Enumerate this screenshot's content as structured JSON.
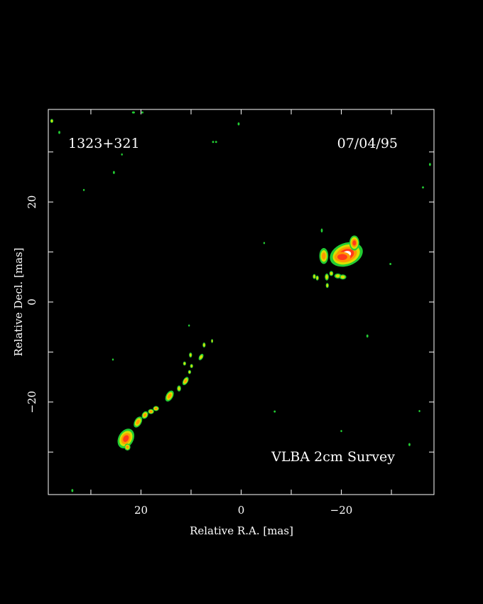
{
  "chart_data": {
    "type": "heatmap",
    "source_name": "1323+321",
    "epoch": "07/04/95",
    "survey_label": "VLBA 2cm Survey",
    "xlabel": "Relative R.A. [mas]",
    "ylabel": "Relative Decl. [mas]",
    "xlim": [
      38.5,
      -38.5
    ],
    "ylim": [
      -38.5,
      38.5
    ],
    "x_reversed": true,
    "x_ticks": [
      20,
      0,
      -20
    ],
    "x_tick_labels": [
      "20",
      "0",
      "−20"
    ],
    "y_ticks": [
      20,
      0,
      -20
    ],
    "y_tick_labels": [
      "20",
      "0",
      "−20"
    ],
    "minor_tick_step": 10,
    "grid": false,
    "background": "#000000",
    "colors": {
      "axes": "#ffffff",
      "faint": "#22cc33",
      "low": "#d8e000",
      "mid": "#ff9900",
      "high": "#ff3a1a",
      "peak": "#ffffff"
    },
    "components": [
      {
        "x": -21.0,
        "y": 9.5,
        "w": 3.4,
        "h": 2.3,
        "angle": -20,
        "level": "peak"
      },
      {
        "x": -20.2,
        "y": 9.0,
        "w": 1.6,
        "h": 1.0,
        "angle": 0,
        "level": "core"
      },
      {
        "x": -22.6,
        "y": 11.8,
        "w": 1.0,
        "h": 1.5,
        "angle": 0,
        "level": "high"
      },
      {
        "x": -16.5,
        "y": 9.2,
        "w": 0.9,
        "h": 1.6,
        "angle": 0,
        "level": "mid"
      },
      {
        "x": -19.3,
        "y": 5.2,
        "w": 0.7,
        "h": 0.5,
        "angle": 0,
        "level": "low"
      },
      {
        "x": -20.3,
        "y": 5.0,
        "w": 0.7,
        "h": 0.5,
        "angle": 0,
        "level": "low"
      },
      {
        "x": -18.0,
        "y": 5.7,
        "w": 0.4,
        "h": 0.5,
        "angle": 0,
        "level": "low"
      },
      {
        "x": -17.1,
        "y": 5.0,
        "w": 0.4,
        "h": 0.7,
        "angle": 0,
        "level": "low"
      },
      {
        "x": -17.2,
        "y": 3.3,
        "w": 0.3,
        "h": 0.5,
        "angle": 0,
        "level": "low"
      },
      {
        "x": -15.2,
        "y": 4.8,
        "w": 0.3,
        "h": 0.5,
        "angle": 0,
        "level": "low"
      },
      {
        "x": -14.6,
        "y": 5.1,
        "w": 0.3,
        "h": 0.5,
        "angle": 0,
        "level": "low"
      },
      {
        "x": -16.1,
        "y": 14.3,
        "w": 0.2,
        "h": 0.4,
        "angle": 0,
        "level": "faint"
      },
      {
        "x": 23.0,
        "y": -27.3,
        "w": 1.5,
        "h": 2.1,
        "angle": 30,
        "level": "high"
      },
      {
        "x": 22.7,
        "y": -29.0,
        "w": 0.6,
        "h": 0.7,
        "angle": 0,
        "level": "mid"
      },
      {
        "x": 20.6,
        "y": -24.0,
        "w": 0.7,
        "h": 1.2,
        "angle": 30,
        "level": "mid"
      },
      {
        "x": 19.2,
        "y": -22.6,
        "w": 0.6,
        "h": 0.8,
        "angle": 30,
        "level": "mid"
      },
      {
        "x": 18.0,
        "y": -21.9,
        "w": 0.6,
        "h": 0.5,
        "angle": 0,
        "level": "mid"
      },
      {
        "x": 17.0,
        "y": -21.3,
        "w": 0.6,
        "h": 0.5,
        "angle": 0,
        "level": "mid"
      },
      {
        "x": 14.3,
        "y": -18.8,
        "w": 0.7,
        "h": 1.2,
        "angle": 30,
        "level": "mid"
      },
      {
        "x": 12.4,
        "y": -17.3,
        "w": 0.4,
        "h": 0.6,
        "angle": 0,
        "level": "low"
      },
      {
        "x": 11.1,
        "y": -15.8,
        "w": 0.5,
        "h": 0.9,
        "angle": 30,
        "level": "mid"
      },
      {
        "x": 10.3,
        "y": -14.0,
        "w": 0.3,
        "h": 0.4,
        "angle": 0,
        "level": "low"
      },
      {
        "x": 9.9,
        "y": -12.8,
        "w": 0.3,
        "h": 0.4,
        "angle": 0,
        "level": "low"
      },
      {
        "x": 10.1,
        "y": -10.6,
        "w": 0.3,
        "h": 0.5,
        "angle": 0,
        "level": "low"
      },
      {
        "x": 11.3,
        "y": -12.3,
        "w": 0.3,
        "h": 0.4,
        "angle": 0,
        "level": "low"
      },
      {
        "x": 8.0,
        "y": -11.0,
        "w": 0.4,
        "h": 0.7,
        "angle": 30,
        "level": "low"
      },
      {
        "x": 7.4,
        "y": -8.6,
        "w": 0.3,
        "h": 0.5,
        "angle": 0,
        "level": "low"
      },
      {
        "x": 5.8,
        "y": -7.8,
        "w": 0.2,
        "h": 0.4,
        "angle": 0,
        "level": "low"
      },
      {
        "x": 37.8,
        "y": 36.2,
        "w": 0.3,
        "h": 0.4,
        "angle": 0,
        "level": "low"
      },
      {
        "x": 36.3,
        "y": 33.9,
        "w": 0.2,
        "h": 0.3,
        "angle": 0,
        "level": "faint"
      },
      {
        "x": 0.5,
        "y": 35.6,
        "w": 0.2,
        "h": 0.3,
        "angle": 0,
        "level": "faint"
      },
      {
        "x": 5.6,
        "y": 32.0,
        "w": 0.2,
        "h": 0.2,
        "angle": 0,
        "level": "faint"
      },
      {
        "x": 5.0,
        "y": 32.0,
        "w": 0.2,
        "h": 0.2,
        "angle": 0,
        "level": "faint"
      },
      {
        "x": 25.4,
        "y": 25.9,
        "w": 0.2,
        "h": 0.3,
        "angle": 0,
        "level": "faint"
      },
      {
        "x": 21.5,
        "y": 37.9,
        "w": 0.3,
        "h": 0.2,
        "angle": 0,
        "level": "faint"
      },
      {
        "x": 19.7,
        "y": 37.9,
        "w": 0.2,
        "h": 0.2,
        "angle": 0,
        "level": "faint"
      },
      {
        "x": -37.7,
        "y": 27.5,
        "w": 0.2,
        "h": 0.3,
        "angle": 0,
        "level": "faint"
      },
      {
        "x": -36.3,
        "y": 22.9,
        "w": 0.2,
        "h": 0.2,
        "angle": 0,
        "level": "faint"
      },
      {
        "x": -25.2,
        "y": -6.8,
        "w": 0.2,
        "h": 0.3,
        "angle": 0,
        "level": "faint"
      },
      {
        "x": -29.8,
        "y": 7.6,
        "w": 0.2,
        "h": 0.2,
        "angle": 0,
        "level": "faint"
      },
      {
        "x": -4.6,
        "y": 11.8,
        "w": 0.1,
        "h": 0.2,
        "angle": 0,
        "level": "faint"
      },
      {
        "x": 10.4,
        "y": -4.7,
        "w": 0.1,
        "h": 0.2,
        "angle": 0,
        "level": "faint"
      },
      {
        "x": -6.7,
        "y": -21.9,
        "w": 0.2,
        "h": 0.2,
        "angle": 0,
        "level": "faint"
      },
      {
        "x": -20.0,
        "y": -25.8,
        "w": 0.1,
        "h": 0.2,
        "angle": 0,
        "level": "faint"
      },
      {
        "x": -33.6,
        "y": -28.5,
        "w": 0.2,
        "h": 0.3,
        "angle": 0,
        "level": "faint"
      },
      {
        "x": -35.6,
        "y": -21.8,
        "w": 0.1,
        "h": 0.2,
        "angle": 0,
        "level": "faint"
      },
      {
        "x": 25.6,
        "y": -11.5,
        "w": 0.1,
        "h": 0.2,
        "angle": 0,
        "level": "faint"
      },
      {
        "x": 33.7,
        "y": -37.7,
        "w": 0.2,
        "h": 0.3,
        "angle": 0,
        "level": "faint"
      },
      {
        "x": 31.4,
        "y": 22.4,
        "w": 0.1,
        "h": 0.2,
        "angle": 0,
        "level": "faint"
      },
      {
        "x": 23.8,
        "y": 29.5,
        "w": 0.1,
        "h": 0.2,
        "angle": 0,
        "level": "faint"
      }
    ]
  }
}
